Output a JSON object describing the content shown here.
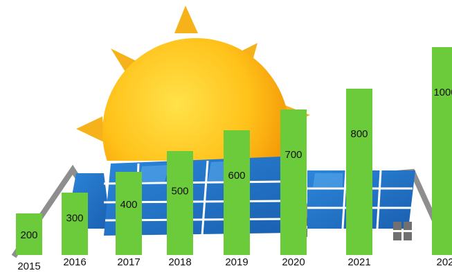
{
  "chart_data": {
    "type": "bar",
    "categories": [
      "2015",
      "2016",
      "2017",
      "2018",
      "2019",
      "2020",
      "2021",
      "202"
    ],
    "values": [
      200,
      300,
      400,
      500,
      600,
      700,
      800,
      1000
    ],
    "data_labels": [
      "200",
      "300",
      "400",
      "500",
      "600",
      "700",
      "800",
      "1000"
    ],
    "title": "",
    "xlabel": "",
    "ylabel": "",
    "ylim": [
      0,
      1000
    ],
    "grid": false,
    "legend": "none"
  },
  "colors": {
    "bar": "#6CCB3B",
    "sun_outer": "#F6A500",
    "sun_inner": "#FFD43A",
    "sun_ray": "#F6B21A",
    "panel": "#1F73C8",
    "panel_light": "#5FB0F0",
    "roof": "#8E8E8E",
    "window": "#707070"
  },
  "icons": [
    "sun-icon",
    "solar-panel-roof-icon",
    "house-window-icon"
  ]
}
